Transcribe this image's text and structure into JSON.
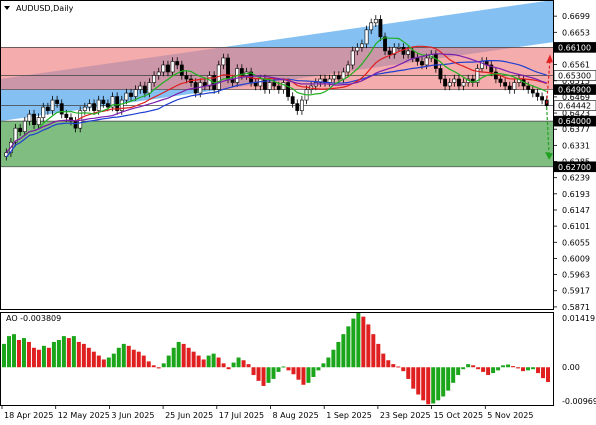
{
  "symbol_title": "AUDUSD,Daily",
  "ao_title": "AO -0.003809",
  "chart_data": [
    {
      "type": "candlestick",
      "title": "AUDUSD,Daily",
      "ylim": [
        0.5865,
        0.6745
      ],
      "y_ticks": [
        0.6699,
        0.6653,
        0.6607,
        0.6561,
        0.6515,
        0.6469,
        0.6423,
        0.6377,
        0.6331,
        0.6285,
        0.6239,
        0.6193,
        0.6147,
        0.6101,
        0.6055,
        0.6009,
        0.5963,
        0.5917,
        0.5871
      ],
      "x_labels": [
        "18 Apr 2025",
        "12 May 2025",
        "3 Jun 2025",
        "25 Jun 2025",
        "17 Jul 2025",
        "8 Aug 2025",
        "1 Sep 2025",
        "23 Sep 2025",
        "15 Oct 2025",
        "5 Nov 2025"
      ],
      "key_levels": [
        {
          "label": "0.66100",
          "value": 0.661,
          "color": "#000000",
          "text_color": "#ffffff"
        },
        {
          "label": "0.65300",
          "value": 0.653,
          "color": "#ffffff",
          "text_color": "#000000"
        },
        {
          "label": "0.64900",
          "value": 0.649,
          "color": "#000000",
          "text_color": "#ffffff"
        },
        {
          "label": "0.64442",
          "value": 0.64442,
          "color": "#ffffff",
          "text_color": "#000000"
        },
        {
          "label": "0.64000",
          "value": 0.64,
          "color": "#000000",
          "text_color": "#ffffff"
        },
        {
          "label": "0.62700",
          "value": 0.627,
          "color": "#000000",
          "text_color": "#ffffff"
        }
      ],
      "zones": [
        {
          "name": "resistance",
          "from": 0.649,
          "to": 0.661,
          "color": "#f08080"
        },
        {
          "name": "support",
          "from": 0.627,
          "to": 0.64,
          "color": "#3c9a3c"
        }
      ],
      "channel_color": "#6fb5f0",
      "moving_average_colors": [
        "#1f3fd1",
        "#e02020",
        "#20b020",
        "#7a1fb0"
      ],
      "projection_colors": {
        "up": "#e02020",
        "down": "#20a020"
      },
      "close_series": [
        0.631,
        0.634,
        0.638,
        0.637,
        0.64,
        0.642,
        0.639,
        0.641,
        0.644,
        0.643,
        0.646,
        0.645,
        0.642,
        0.641,
        0.64,
        0.638,
        0.643,
        0.644,
        0.645,
        0.643,
        0.646,
        0.645,
        0.644,
        0.647,
        0.643,
        0.646,
        0.648,
        0.647,
        0.649,
        0.65,
        0.648,
        0.651,
        0.653,
        0.654,
        0.656,
        0.654,
        0.657,
        0.656,
        0.653,
        0.652,
        0.651,
        0.648,
        0.651,
        0.65,
        0.653,
        0.649,
        0.656,
        0.658,
        0.652,
        0.651,
        0.655,
        0.653,
        0.654,
        0.651,
        0.65,
        0.652,
        0.649,
        0.651,
        0.65,
        0.649,
        0.651,
        0.647,
        0.645,
        0.643,
        0.646,
        0.649,
        0.65,
        0.651,
        0.652,
        0.651,
        0.652,
        0.653,
        0.652,
        0.654,
        0.656,
        0.66,
        0.661,
        0.662,
        0.666,
        0.668,
        0.669,
        0.664,
        0.66,
        0.659,
        0.661,
        0.661,
        0.659,
        0.66,
        0.658,
        0.657,
        0.656,
        0.658,
        0.659,
        0.655,
        0.652,
        0.65,
        0.651,
        0.652,
        0.65,
        0.651,
        0.652,
        0.651,
        0.655,
        0.657,
        0.656,
        0.654,
        0.652,
        0.651,
        0.65,
        0.649,
        0.651,
        0.652,
        0.65,
        0.649,
        0.648,
        0.647,
        0.646,
        0.6444
      ],
      "ao": {
        "title": "AO -0.003809",
        "ylim": [
          -0.009696,
          0.01419
        ],
        "y_ticks": [
          0.01419,
          0.0,
          -0.009696
        ],
        "y_tick_labels": [
          "0.01419",
          "0.00",
          "-0.009696"
        ],
        "positive_color": "#1aa51a",
        "negative_color": "#e02020",
        "values": [
          0.006,
          0.008,
          0.0085,
          0.007,
          0.0075,
          0.0065,
          0.005,
          0.0045,
          0.0055,
          0.005,
          0.0065,
          0.007,
          0.008,
          0.0075,
          0.008,
          0.0065,
          0.006,
          0.005,
          0.004,
          0.003,
          0.002,
          0.0025,
          0.0035,
          0.005,
          0.006,
          0.0055,
          0.0045,
          0.004,
          0.003,
          0.0015,
          0.0005,
          -0.0003,
          0.001,
          0.003,
          0.005,
          0.0065,
          0.006,
          0.005,
          0.004,
          0.003,
          0.002,
          0.003,
          0.0035,
          0.0025,
          0.001,
          -0.0005,
          0.0012,
          0.0025,
          0.0018,
          0.0008,
          -0.002,
          -0.0035,
          -0.0048,
          -0.004,
          -0.003,
          -0.0012,
          0.0002,
          -0.0008,
          -0.0018,
          -0.0032,
          -0.0045,
          -0.004,
          -0.0025,
          -0.0008,
          0.001,
          0.0025,
          0.0045,
          0.0065,
          0.0085,
          0.0105,
          0.0125,
          0.014,
          0.013,
          0.011,
          0.0085,
          0.006,
          0.0035,
          0.0018,
          0.0008,
          0.0002,
          -0.001,
          -0.003,
          -0.0055,
          -0.007,
          -0.0085,
          -0.0095,
          -0.0093,
          -0.0085,
          -0.0075,
          -0.006,
          -0.004,
          -0.002,
          -0.0005,
          0.0008,
          0.0005,
          -0.0005,
          -0.0012,
          -0.002,
          -0.0015,
          -0.0008,
          0.0005,
          0.0007,
          0.0003,
          -0.0003,
          -0.001,
          -0.0008,
          -0.0005,
          -0.0015,
          -0.0028,
          -0.0038
        ]
      }
    }
  ]
}
